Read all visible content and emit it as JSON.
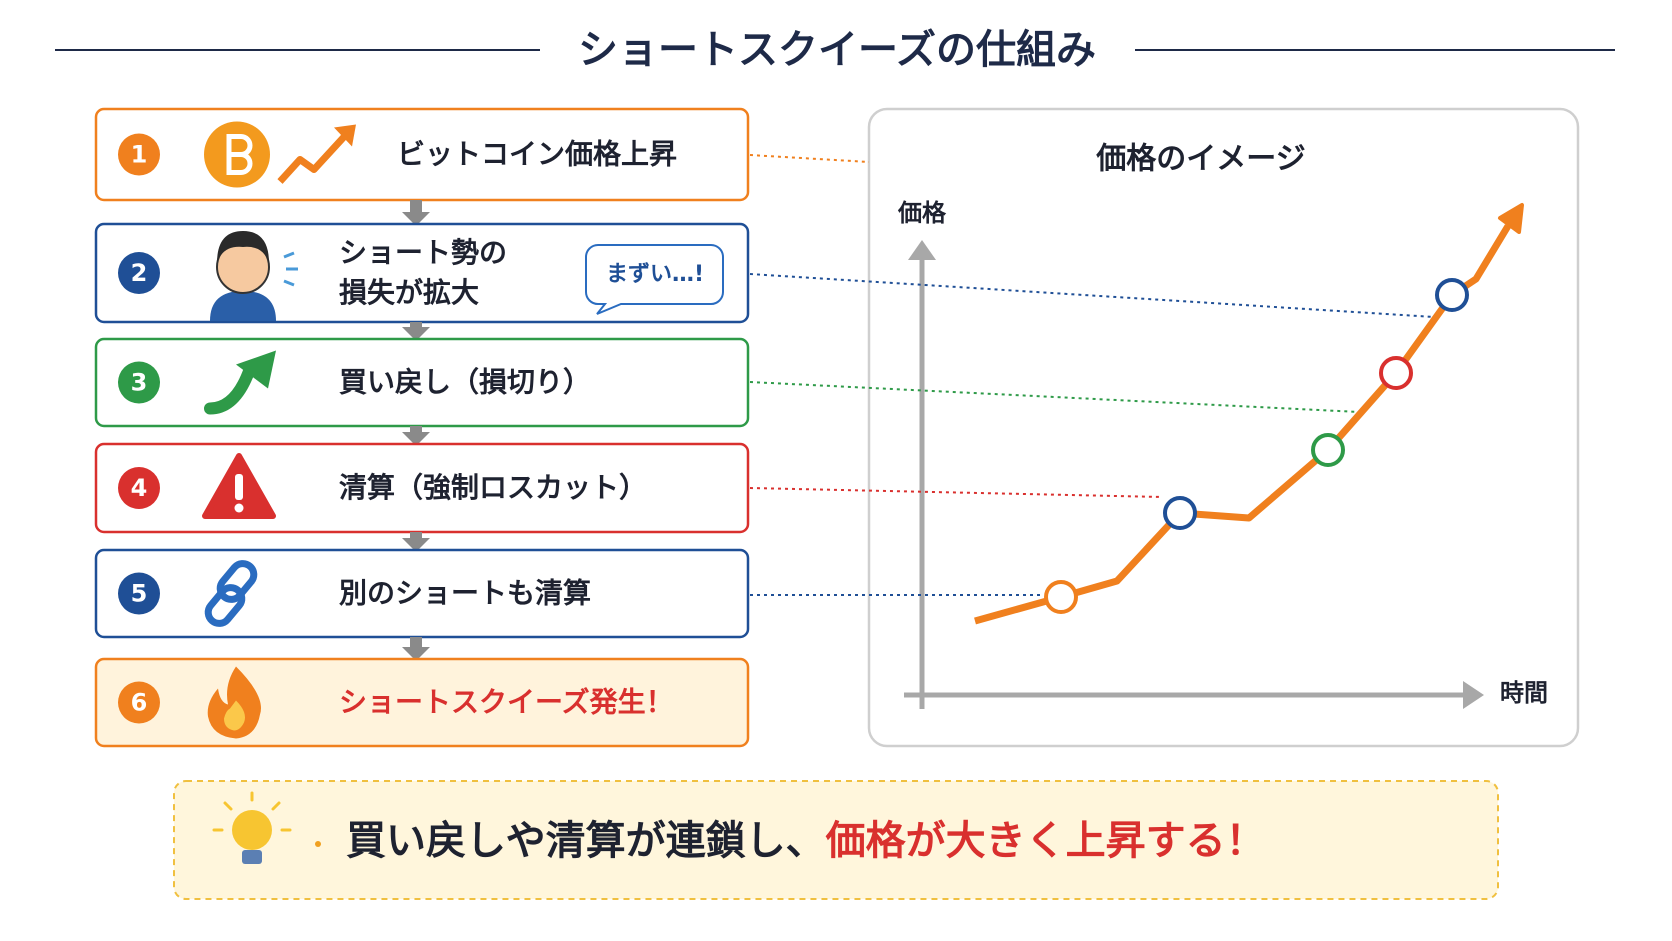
{
  "title": "ショートスクイーズの仕組み",
  "steps": [
    {
      "number": "1",
      "label": "ビットコイン価格上昇"
    },
    {
      "number": "2",
      "label_lines": [
        "ショート勢の",
        "損失が拡大"
      ],
      "bubble": "まずい…!"
    },
    {
      "number": "3",
      "label": "買い戻し（損切り）"
    },
    {
      "number": "4",
      "label": "清算（強制ロスカット）"
    },
    {
      "number": "5",
      "label": "別のショートも清算"
    },
    {
      "number": "6",
      "label": "ショートスクイーズ発生！"
    }
  ],
  "chart_panel": {
    "title": "価格のイメージ",
    "y_label": "価格",
    "x_label": "時間"
  },
  "footer": {
    "text": "買い戻しや清算が連鎖し、",
    "highlight": "価格が大きく上昇する！"
  }
}
